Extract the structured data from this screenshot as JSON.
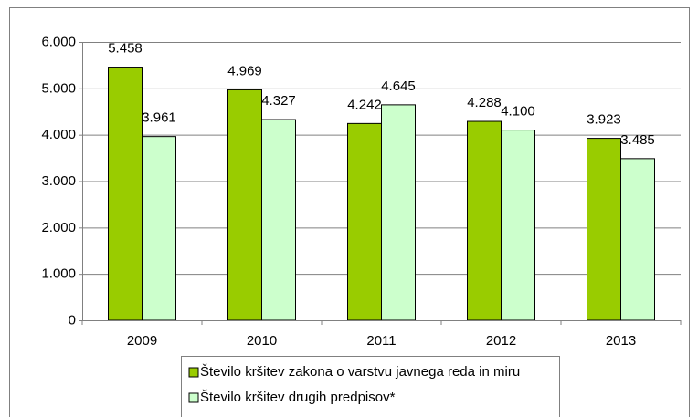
{
  "chart_data": {
    "type": "bar",
    "categories": [
      "2009",
      "2010",
      "2011",
      "2012",
      "2013"
    ],
    "series": [
      {
        "name": "Število kršitev zakona o varstvu javnega reda in miru",
        "color": "#99cc00",
        "values": [
          5458,
          4969,
          4242,
          4288,
          3923
        ],
        "value_labels": [
          "5.458",
          "4.969",
          "4.242",
          "4.288",
          "3.923"
        ]
      },
      {
        "name": "Število kršitev drugih predpisov*",
        "color": "#ccffcc",
        "values": [
          3961,
          4327,
          4645,
          4100,
          3485
        ],
        "value_labels": [
          "3.961",
          "4.327",
          "4.645",
          "4.100",
          "3.485"
        ]
      }
    ],
    "ylim": [
      0,
      6000
    ],
    "yticks": [
      0,
      {
        "value": 1000,
        "label": "1.000"
      },
      {
        "value": 2000,
        "label": "2.000"
      },
      {
        "value": 3000,
        "label": "3.000"
      },
      {
        "value": 4000,
        "label": "4.000"
      },
      {
        "value": 5000,
        "label": "5.000"
      },
      {
        "value": 6000,
        "label": "6.000"
      }
    ],
    "grid": true,
    "legend": "bottom"
  }
}
